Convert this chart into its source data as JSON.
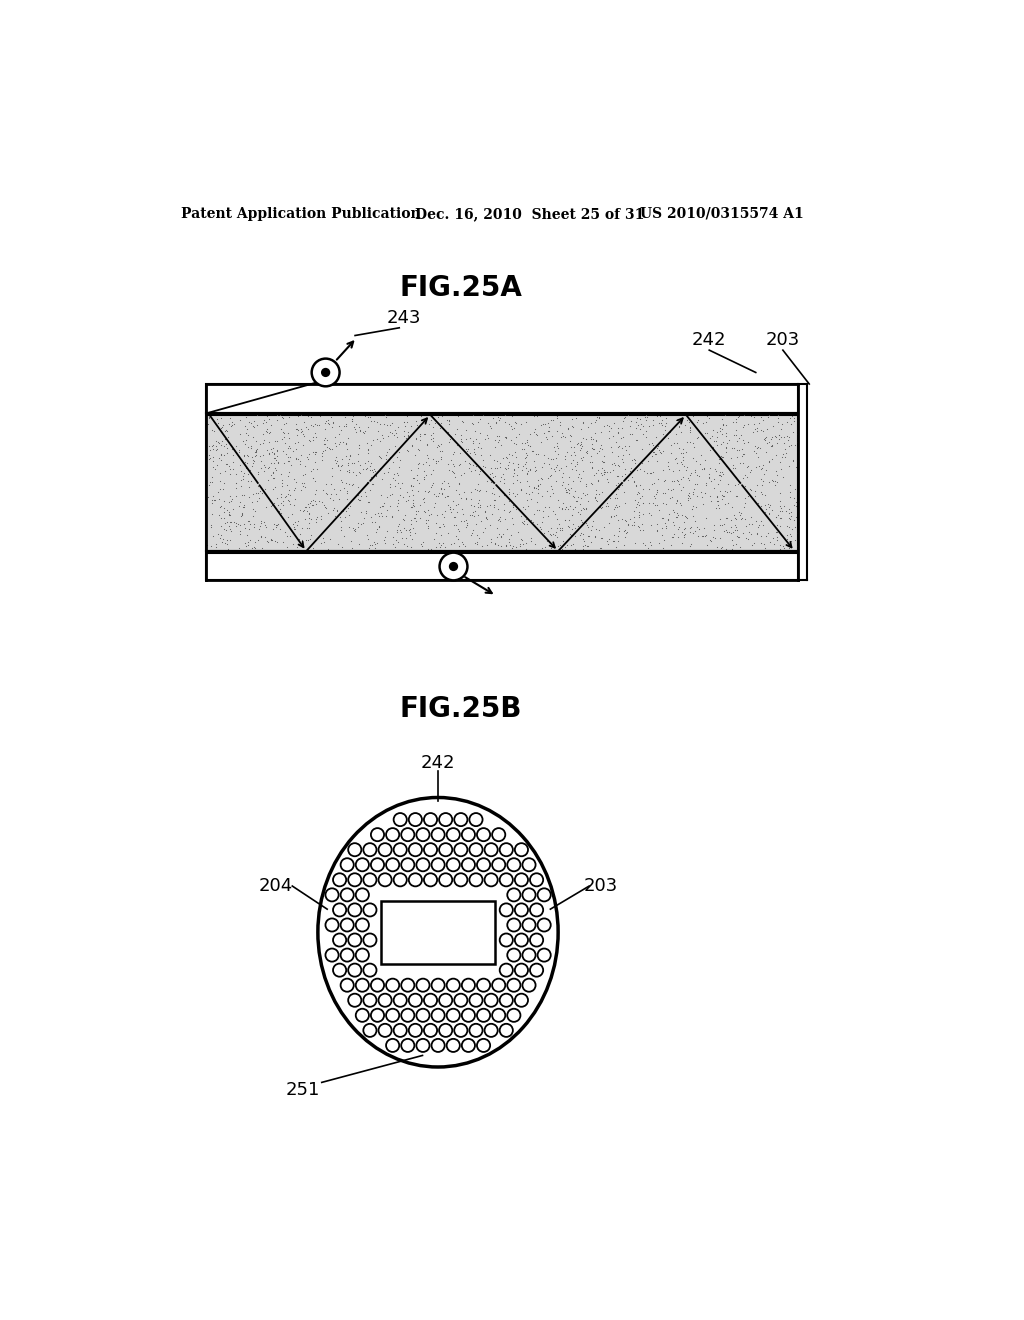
{
  "bg_color": "#ffffff",
  "header_left": "Patent Application Publication",
  "header_mid": "Dec. 16, 2010  Sheet 25 of 31",
  "header_right": "US 2010/0315574 A1",
  "fig25a_title": "FIG.25A",
  "fig25b_title": "FIG.25B",
  "label_243": "243",
  "label_242_a": "242",
  "label_203_a": "203",
  "label_242_b": "242",
  "label_203_b": "203",
  "label_204": "204",
  "label_251": "251"
}
